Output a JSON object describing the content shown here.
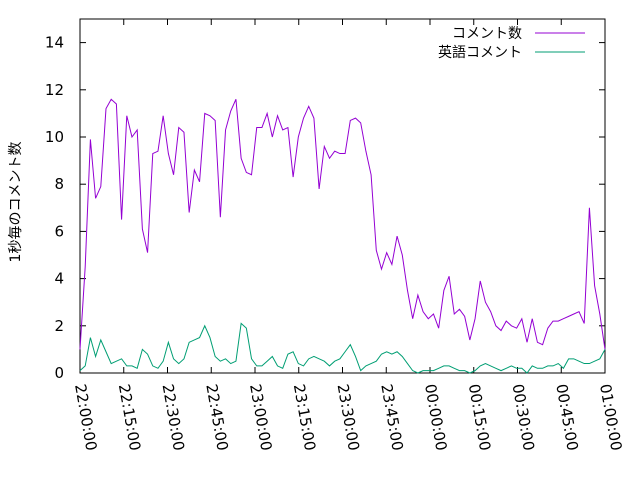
{
  "chart_data": {
    "type": "line",
    "ylabel": "1秒毎のコメント数",
    "xlim": [
      "22:00:00",
      "01:00:00"
    ],
    "ylim": [
      0,
      15
    ],
    "y_ticks": [
      0,
      2,
      4,
      6,
      8,
      10,
      12,
      14
    ],
    "x_ticks": [
      "22:00:00",
      "22:15:00",
      "22:30:00",
      "22:45:00",
      "23:00:00",
      "23:15:00",
      "23:30:00",
      "23:45:00",
      "00:00:00",
      "00:15:00",
      "00:30:00",
      "00:45:00",
      "01:00:00"
    ],
    "legend_placement": "top-right",
    "grid": false,
    "series": [
      {
        "name": "コメント数",
        "color": "#9400d3",
        "points": [
          [
            0,
            1.0
          ],
          [
            1,
            4.5
          ],
          [
            2,
            9.9
          ],
          [
            3,
            7.4
          ],
          [
            4,
            7.9
          ],
          [
            5,
            11.2
          ],
          [
            6,
            11.6
          ],
          [
            7,
            11.4
          ],
          [
            8,
            6.5
          ],
          [
            9,
            10.9
          ],
          [
            10,
            10.0
          ],
          [
            11,
            10.3
          ],
          [
            12,
            6.1
          ],
          [
            13,
            5.1
          ],
          [
            14,
            9.3
          ],
          [
            15,
            9.4
          ],
          [
            16,
            10.9
          ],
          [
            17,
            9.3
          ],
          [
            18,
            8.4
          ],
          [
            19,
            10.4
          ],
          [
            20,
            10.2
          ],
          [
            21,
            6.8
          ],
          [
            22,
            8.6
          ],
          [
            23,
            8.1
          ],
          [
            24,
            11.0
          ],
          [
            25,
            10.9
          ],
          [
            26,
            10.7
          ],
          [
            27,
            6.6
          ],
          [
            28,
            10.3
          ],
          [
            29,
            11.1
          ],
          [
            30,
            11.6
          ],
          [
            31,
            9.1
          ],
          [
            32,
            8.5
          ],
          [
            33,
            8.4
          ],
          [
            34,
            10.4
          ],
          [
            35,
            10.4
          ],
          [
            36,
            11.0
          ],
          [
            37,
            10.0
          ],
          [
            38,
            10.9
          ],
          [
            39,
            10.3
          ],
          [
            40,
            10.4
          ],
          [
            41,
            8.3
          ],
          [
            42,
            10.0
          ],
          [
            43,
            10.8
          ],
          [
            44,
            11.3
          ],
          [
            45,
            10.8
          ],
          [
            46,
            7.8
          ],
          [
            47,
            9.6
          ],
          [
            48,
            9.1
          ],
          [
            49,
            9.4
          ],
          [
            50,
            9.3
          ],
          [
            51,
            9.3
          ],
          [
            52,
            10.7
          ],
          [
            53,
            10.8
          ],
          [
            54,
            10.6
          ],
          [
            55,
            9.4
          ],
          [
            56,
            8.4
          ],
          [
            57,
            5.2
          ],
          [
            58,
            4.4
          ],
          [
            59,
            5.1
          ],
          [
            60,
            4.6
          ],
          [
            61,
            5.8
          ],
          [
            62,
            5.0
          ],
          [
            63,
            3.5
          ],
          [
            64,
            2.3
          ],
          [
            65,
            3.3
          ],
          [
            66,
            2.6
          ],
          [
            67,
            2.3
          ],
          [
            68,
            2.5
          ],
          [
            69,
            1.9
          ],
          [
            70,
            3.5
          ],
          [
            71,
            4.1
          ],
          [
            72,
            2.5
          ],
          [
            73,
            2.7
          ],
          [
            74,
            2.4
          ],
          [
            75,
            1.4
          ],
          [
            76,
            2.3
          ],
          [
            77,
            3.9
          ],
          [
            78,
            3.0
          ],
          [
            79,
            2.6
          ],
          [
            80,
            2.0
          ],
          [
            81,
            1.8
          ],
          [
            82,
            2.2
          ],
          [
            83,
            2.0
          ],
          [
            84,
            1.9
          ],
          [
            85,
            2.3
          ],
          [
            86,
            1.3
          ],
          [
            87,
            2.3
          ],
          [
            88,
            1.3
          ],
          [
            89,
            1.2
          ],
          [
            90,
            1.9
          ],
          [
            91,
            2.2
          ],
          [
            92,
            2.2
          ],
          [
            93,
            2.3
          ],
          [
            94,
            2.4
          ],
          [
            95,
            2.5
          ],
          [
            96,
            2.6
          ],
          [
            97,
            2.1
          ],
          [
            98,
            7.0
          ],
          [
            99,
            3.7
          ],
          [
            100,
            2.5
          ],
          [
            101,
            1.0
          ]
        ]
      },
      {
        "name": "英語コメント",
        "color": "#009e73",
        "points": [
          [
            0,
            0.1
          ],
          [
            1,
            0.3
          ],
          [
            2,
            1.5
          ],
          [
            3,
            0.7
          ],
          [
            4,
            1.4
          ],
          [
            5,
            0.9
          ],
          [
            6,
            0.4
          ],
          [
            7,
            0.5
          ],
          [
            8,
            0.6
          ],
          [
            9,
            0.3
          ],
          [
            10,
            0.3
          ],
          [
            11,
            0.2
          ],
          [
            12,
            1.0
          ],
          [
            13,
            0.8
          ],
          [
            14,
            0.3
          ],
          [
            15,
            0.2
          ],
          [
            16,
            0.5
          ],
          [
            17,
            1.3
          ],
          [
            18,
            0.6
          ],
          [
            19,
            0.4
          ],
          [
            20,
            0.6
          ],
          [
            21,
            1.3
          ],
          [
            22,
            1.4
          ],
          [
            23,
            1.5
          ],
          [
            24,
            2.0
          ],
          [
            25,
            1.5
          ],
          [
            26,
            0.7
          ],
          [
            27,
            0.5
          ],
          [
            28,
            0.6
          ],
          [
            29,
            0.4
          ],
          [
            30,
            0.5
          ],
          [
            31,
            2.1
          ],
          [
            32,
            1.9
          ],
          [
            33,
            0.6
          ],
          [
            34,
            0.3
          ],
          [
            35,
            0.3
          ],
          [
            36,
            0.5
          ],
          [
            37,
            0.7
          ],
          [
            38,
            0.3
          ],
          [
            39,
            0.2
          ],
          [
            40,
            0.8
          ],
          [
            41,
            0.9
          ],
          [
            42,
            0.4
          ],
          [
            43,
            0.3
          ],
          [
            44,
            0.6
          ],
          [
            45,
            0.7
          ],
          [
            46,
            0.6
          ],
          [
            47,
            0.5
          ],
          [
            48,
            0.3
          ],
          [
            49,
            0.5
          ],
          [
            50,
            0.6
          ],
          [
            51,
            0.9
          ],
          [
            52,
            1.2
          ],
          [
            53,
            0.7
          ],
          [
            54,
            0.1
          ],
          [
            55,
            0.3
          ],
          [
            56,
            0.4
          ],
          [
            57,
            0.5
          ],
          [
            58,
            0.8
          ],
          [
            59,
            0.9
          ],
          [
            60,
            0.8
          ],
          [
            61,
            0.9
          ],
          [
            62,
            0.7
          ],
          [
            63,
            0.4
          ],
          [
            64,
            0.1
          ],
          [
            65,
            0.0
          ],
          [
            66,
            0.1
          ],
          [
            67,
            0.1
          ],
          [
            68,
            0.1
          ],
          [
            69,
            0.2
          ],
          [
            70,
            0.3
          ],
          [
            71,
            0.3
          ],
          [
            72,
            0.2
          ],
          [
            73,
            0.1
          ],
          [
            74,
            0.1
          ],
          [
            75,
            0.0
          ],
          [
            76,
            0.1
          ],
          [
            77,
            0.3
          ],
          [
            78,
            0.4
          ],
          [
            79,
            0.3
          ],
          [
            80,
            0.2
          ],
          [
            81,
            0.1
          ],
          [
            82,
            0.2
          ],
          [
            83,
            0.3
          ],
          [
            84,
            0.2
          ],
          [
            85,
            0.2
          ],
          [
            86,
            0.0
          ],
          [
            87,
            0.3
          ],
          [
            88,
            0.2
          ],
          [
            89,
            0.2
          ],
          [
            90,
            0.3
          ],
          [
            91,
            0.3
          ],
          [
            92,
            0.4
          ],
          [
            93,
            0.2
          ],
          [
            94,
            0.6
          ],
          [
            95,
            0.6
          ],
          [
            96,
            0.5
          ],
          [
            97,
            0.4
          ],
          [
            98,
            0.4
          ],
          [
            99,
            0.5
          ],
          [
            100,
            0.6
          ],
          [
            101,
            1.0
          ]
        ]
      }
    ]
  }
}
